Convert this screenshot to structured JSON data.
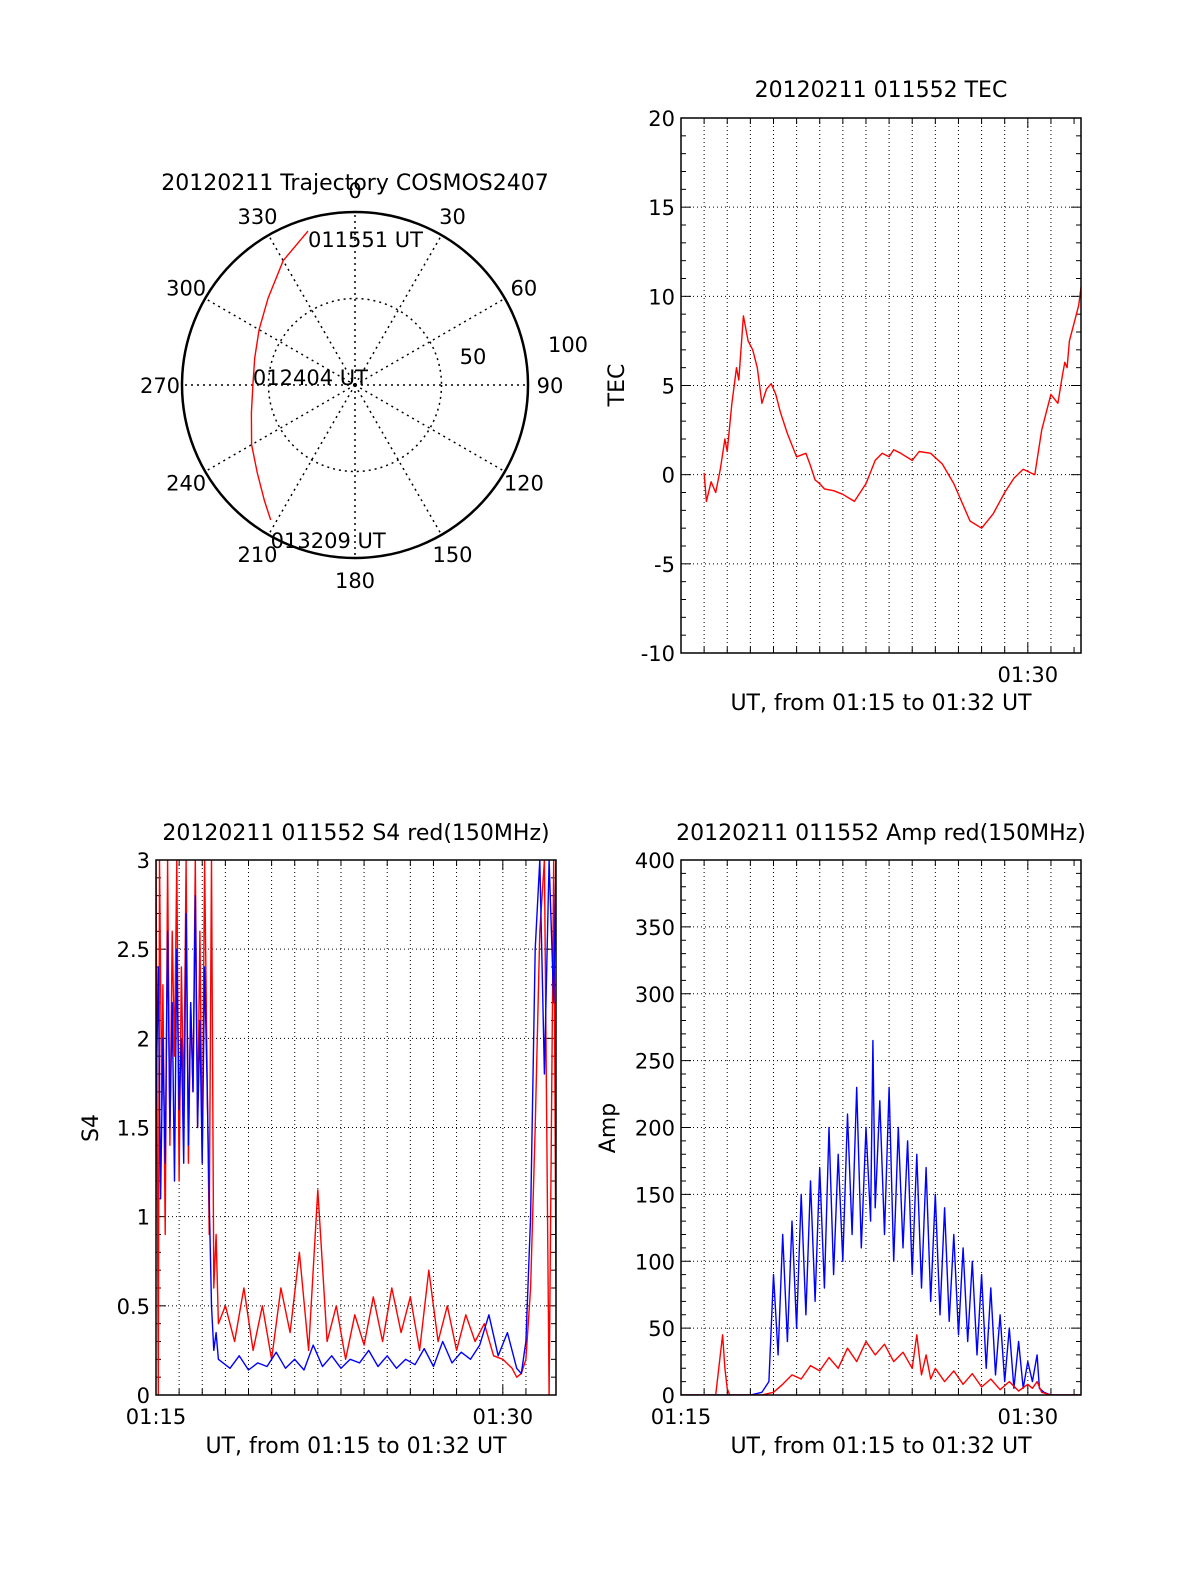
{
  "chart_data": [
    {
      "type": "polar",
      "title": "20120211 Trajectory COSMOS2407",
      "azimuth_labels": [
        "0",
        "30",
        "60",
        "90",
        "120",
        "150",
        "180",
        "210",
        "240",
        "270",
        "300",
        "330"
      ],
      "radial_labels": [
        "50",
        "100"
      ],
      "radial_ticks": [
        50,
        100
      ],
      "rlim": [
        0,
        100
      ],
      "grid": true,
      "series": [
        {
          "color": "#ff0000",
          "points": [
            {
              "az": 343,
              "r": 93
            },
            {
              "az": 330,
              "r": 83
            },
            {
              "az": 315,
              "r": 71
            },
            {
              "az": 300,
              "r": 64
            },
            {
              "az": 285,
              "r": 60
            },
            {
              "az": 270,
              "r": 59
            },
            {
              "az": 255,
              "r": 62
            },
            {
              "az": 240,
              "r": 69
            },
            {
              "az": 228,
              "r": 76
            },
            {
              "az": 218,
              "r": 85
            },
            {
              "az": 212,
              "r": 92
            }
          ]
        }
      ],
      "annotations": [
        {
          "text": "011551 UT",
          "az": 343,
          "r": 93
        },
        {
          "text": "012404 UT",
          "az": 270,
          "r": 59
        },
        {
          "text": "013209 UT",
          "az": 212,
          "r": 92
        }
      ]
    },
    {
      "type": "line",
      "title": "20120211 011552 TEC",
      "xlabel": "UT, from 01:15 to 01:32 UT",
      "ylabel": "TEC",
      "xlim": [
        0,
        17.3
      ],
      "ylim": [
        -10,
        20
      ],
      "yticks": [
        -10,
        -5,
        0,
        5,
        10,
        15,
        20
      ],
      "xticks": [
        {
          "value": 15,
          "label": "01:30"
        }
      ],
      "grid": true,
      "series": [
        {
          "color": "#ff0000",
          "x": [
            1.0,
            1.1,
            1.3,
            1.5,
            1.7,
            1.9,
            2.0,
            2.2,
            2.4,
            2.5,
            2.7,
            2.9,
            3.1,
            3.3,
            3.5,
            3.7,
            3.9,
            4.1,
            4.3,
            4.6,
            5.0,
            5.4,
            5.6,
            5.8,
            6.0,
            6.2,
            6.6,
            7.0,
            7.5,
            8.0,
            8.4,
            8.7,
            9.0,
            9.2,
            9.5,
            10.0,
            10.3,
            10.8,
            11.3,
            11.8,
            12.5,
            13.0,
            13.5,
            14.0,
            14.4,
            14.8,
            15.3,
            15.6,
            16.0,
            16.3,
            16.5,
            16.6,
            16.7,
            16.8,
            17.0,
            17.2,
            17.3
          ],
          "y": [
            0.1,
            -1.5,
            -0.4,
            -1.0,
            0.3,
            2.0,
            1.3,
            4.0,
            6.0,
            5.3,
            8.9,
            7.5,
            7.0,
            6.0,
            4.0,
            4.8,
            5.1,
            4.5,
            3.5,
            2.3,
            1.0,
            1.2,
            0.5,
            -0.3,
            -0.5,
            -0.8,
            -0.9,
            -1.1,
            -1.5,
            -0.5,
            0.8,
            1.2,
            1.0,
            1.4,
            1.2,
            0.8,
            1.3,
            1.2,
            0.6,
            -0.5,
            -2.6,
            -3.0,
            -2.2,
            -1.0,
            -0.2,
            0.3,
            0.0,
            2.5,
            4.5,
            4.0,
            5.6,
            6.3,
            6.0,
            7.5,
            8.5,
            9.5,
            10.5
          ]
        }
      ]
    },
    {
      "type": "line",
      "title": "20120211 011552 S4 red(150MHz)",
      "xlabel": "UT, from 01:15 to 01:32 UT",
      "ylabel": "S4",
      "xlim": [
        0,
        17.3
      ],
      "ylim": [
        0,
        3
      ],
      "yticks": [
        0,
        0.5,
        1,
        1.5,
        2,
        2.5,
        3
      ],
      "xticks": [
        {
          "value": 0,
          "label": "01:15"
        },
        {
          "value": 15,
          "label": "01:30"
        }
      ],
      "grid": true,
      "series": [
        {
          "color": "#ff0000",
          "x": [
            0.0,
            0.1,
            0.15,
            0.25,
            0.3,
            0.4,
            0.5,
            0.6,
            0.7,
            0.8,
            0.9,
            1.0,
            1.1,
            1.2,
            1.3,
            1.4,
            1.5,
            1.6,
            1.7,
            1.8,
            1.9,
            2.0,
            2.1,
            2.2,
            2.3,
            2.4,
            2.5,
            2.6,
            2.7,
            3.0,
            3.4,
            3.8,
            4.2,
            4.6,
            5.0,
            5.4,
            5.8,
            6.2,
            6.6,
            7.0,
            7.4,
            7.8,
            8.2,
            8.6,
            9.0,
            9.4,
            9.8,
            10.2,
            10.6,
            11.0,
            11.4,
            11.8,
            12.2,
            12.6,
            13.0,
            13.4,
            13.8,
            14.2,
            14.6,
            15.0,
            15.4,
            15.6,
            15.8,
            16.0,
            16.2,
            16.4,
            16.6,
            16.8,
            17.0,
            17.2,
            17.3
          ],
          "y": [
            3.0,
            0.0,
            3.0,
            1.6,
            2.3,
            0.9,
            3.0,
            1.4,
            2.6,
            1.9,
            3.0,
            1.2,
            2.4,
            1.6,
            3.0,
            1.3,
            2.2,
            1.7,
            3.0,
            1.5,
            2.6,
            1.3,
            3.0,
            1.9,
            0.9,
            3.0,
            0.6,
            0.9,
            0.4,
            0.5,
            0.3,
            0.6,
            0.25,
            0.5,
            0.2,
            0.6,
            0.35,
            0.8,
            0.25,
            1.15,
            0.3,
            0.5,
            0.2,
            0.45,
            0.28,
            0.55,
            0.3,
            0.6,
            0.35,
            0.55,
            0.25,
            0.7,
            0.3,
            0.5,
            0.25,
            0.45,
            0.3,
            0.4,
            0.22,
            0.2,
            0.15,
            0.1,
            0.12,
            0.2,
            0.6,
            1.5,
            2.6,
            3.0,
            0.0,
            3.0,
            0.6
          ]
        },
        {
          "color": "#0000ff",
          "x": [
            0.0,
            0.1,
            0.2,
            0.3,
            0.4,
            0.5,
            0.6,
            0.7,
            0.8,
            0.9,
            1.0,
            1.1,
            1.2,
            1.3,
            1.4,
            1.5,
            1.6,
            1.7,
            1.8,
            1.9,
            2.0,
            2.1,
            2.2,
            2.3,
            2.4,
            2.5,
            2.6,
            2.7,
            2.9,
            3.2,
            3.6,
            4.0,
            4.4,
            4.8,
            5.2,
            5.6,
            6.0,
            6.4,
            6.8,
            7.2,
            7.6,
            8.0,
            8.4,
            8.8,
            9.2,
            9.6,
            10.0,
            10.4,
            10.8,
            11.2,
            11.6,
            12.0,
            12.4,
            12.8,
            13.2,
            13.6,
            14.0,
            14.4,
            14.8,
            15.2,
            15.6,
            15.8,
            16.0,
            16.2,
            16.4,
            16.6,
            16.8,
            17.0,
            17.2,
            17.3
          ],
          "y": [
            1.6,
            2.4,
            1.1,
            2.0,
            1.3,
            2.6,
            1.5,
            2.2,
            1.2,
            2.5,
            1.6,
            2.0,
            1.3,
            2.7,
            1.4,
            2.2,
            1.7,
            2.8,
            1.5,
            2.1,
            1.3,
            2.4,
            1.8,
            1.1,
            0.5,
            0.25,
            0.35,
            0.2,
            0.18,
            0.15,
            0.22,
            0.14,
            0.18,
            0.16,
            0.24,
            0.15,
            0.2,
            0.14,
            0.28,
            0.16,
            0.22,
            0.15,
            0.2,
            0.18,
            0.25,
            0.16,
            0.22,
            0.15,
            0.2,
            0.17,
            0.26,
            0.16,
            0.3,
            0.18,
            0.24,
            0.2,
            0.28,
            0.45,
            0.22,
            0.35,
            0.15,
            0.12,
            0.3,
            1.0,
            2.5,
            3.0,
            1.8,
            3.0,
            2.2,
            3.0
          ]
        }
      ]
    },
    {
      "type": "line",
      "title": "20120211 011552 Amp red(150MHz)",
      "xlabel": "UT, from 01:15 to 01:32 UT",
      "ylabel": "Amp",
      "xlim": [
        0,
        17.3
      ],
      "ylim": [
        0,
        400
      ],
      "yticks": [
        0,
        50,
        100,
        150,
        200,
        250,
        300,
        350,
        400
      ],
      "xticks": [
        {
          "value": 0,
          "label": "01:15"
        },
        {
          "value": 15,
          "label": "01:30"
        }
      ],
      "grid": true,
      "series": [
        {
          "color": "#0000ff",
          "x": [
            0.0,
            1.0,
            2.0,
            3.0,
            3.5,
            3.8,
            4.0,
            4.2,
            4.4,
            4.6,
            4.8,
            5.0,
            5.2,
            5.4,
            5.6,
            5.8,
            6.0,
            6.2,
            6.4,
            6.6,
            6.8,
            7.0,
            7.2,
            7.4,
            7.6,
            7.8,
            8.0,
            8.2,
            8.3,
            8.4,
            8.6,
            8.8,
            9.0,
            9.2,
            9.4,
            9.6,
            9.8,
            10.0,
            10.2,
            10.4,
            10.6,
            10.8,
            11.0,
            11.2,
            11.4,
            11.6,
            11.8,
            12.0,
            12.2,
            12.4,
            12.6,
            12.8,
            13.0,
            13.2,
            13.4,
            13.6,
            13.8,
            14.0,
            14.2,
            14.4,
            14.6,
            14.8,
            15.0,
            15.2,
            15.4,
            15.5,
            15.7,
            16.0,
            17.3
          ],
          "y": [
            0,
            0,
            0,
            0,
            2,
            10,
            90,
            30,
            120,
            40,
            130,
            50,
            150,
            60,
            160,
            70,
            170,
            80,
            200,
            90,
            180,
            100,
            210,
            120,
            230,
            110,
            200,
            130,
            265,
            140,
            220,
            120,
            230,
            100,
            200,
            110,
            190,
            90,
            180,
            80,
            170,
            70,
            150,
            60,
            140,
            55,
            120,
            45,
            110,
            40,
            100,
            30,
            90,
            20,
            80,
            15,
            60,
            10,
            50,
            5,
            40,
            5,
            25,
            10,
            30,
            5,
            2,
            0,
            0
          ]
        },
        {
          "color": "#ff0000",
          "x": [
            0.0,
            1.0,
            1.5,
            1.7,
            1.8,
            1.9,
            2.0,
            2.1,
            2.5,
            3.0,
            3.5,
            4.0,
            4.4,
            4.8,
            5.2,
            5.6,
            6.0,
            6.4,
            6.8,
            7.2,
            7.6,
            8.0,
            8.4,
            8.8,
            9.2,
            9.6,
            10.0,
            10.2,
            10.4,
            10.6,
            10.8,
            11.0,
            11.4,
            11.8,
            12.2,
            12.6,
            13.0,
            13.4,
            13.8,
            14.2,
            14.6,
            15.0,
            15.2,
            15.4,
            15.6,
            16.0,
            17.3
          ],
          "y": [
            0,
            0,
            0,
            30,
            45,
            20,
            5,
            0,
            0,
            0,
            0,
            2,
            8,
            15,
            12,
            22,
            18,
            28,
            20,
            35,
            25,
            40,
            30,
            38,
            25,
            32,
            20,
            45,
            15,
            30,
            12,
            20,
            10,
            18,
            8,
            16,
            6,
            12,
            4,
            10,
            3,
            8,
            5,
            10,
            2,
            0,
            0
          ]
        }
      ]
    }
  ]
}
